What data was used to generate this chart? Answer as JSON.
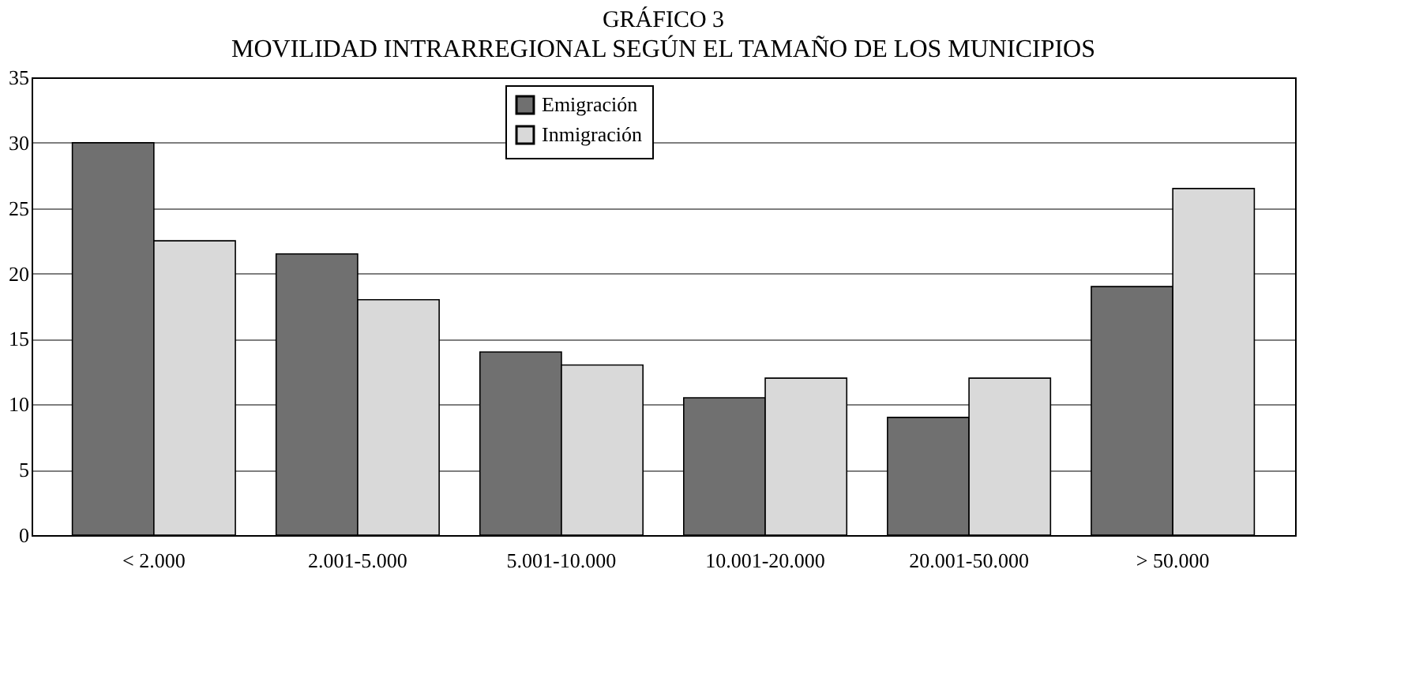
{
  "chart_data": {
    "type": "bar",
    "title": "GRÁFICO 3",
    "subtitle": "MOVILIDAD INTRARREGIONAL SEGÚN EL TAMAÑO DE LOS MUNICIPIOS",
    "categories": [
      "< 2.000",
      "2.001-5.000",
      "5.001-10.000",
      "10.001-20.000",
      "20.001-50.000",
      "> 50.000"
    ],
    "series": [
      {
        "name": "Emigración",
        "color": "#707070",
        "values": [
          30,
          21.5,
          14,
          10.5,
          9,
          19
        ]
      },
      {
        "name": "Inmigración",
        "color": "#d9d9d9",
        "values": [
          22.5,
          18,
          13,
          12,
          12,
          26.5
        ]
      }
    ],
    "ylim": [
      0,
      35
    ],
    "yticks": [
      0,
      5,
      10,
      15,
      20,
      25,
      30,
      35
    ],
    "grid": "y",
    "legend": "top"
  }
}
